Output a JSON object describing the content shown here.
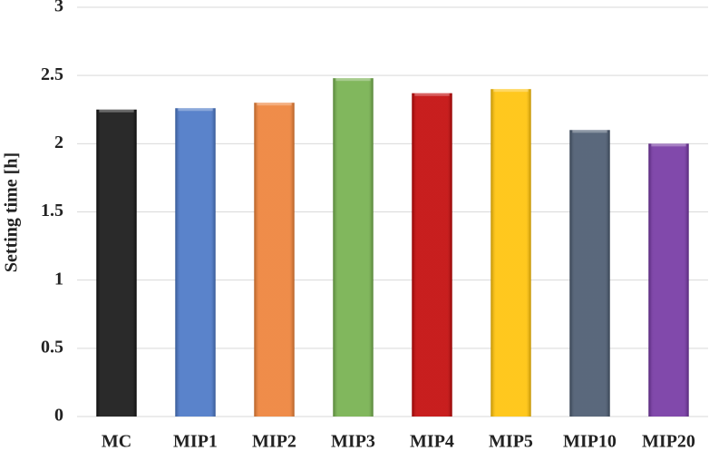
{
  "chart_data": {
    "type": "bar",
    "y_label": "Setting time [h]",
    "categories": [
      "MC",
      "MIP1",
      "MIP2",
      "MIP3",
      "MIP4",
      "MIP5",
      "MIP10",
      "MIP20"
    ],
    "values": [
      2.25,
      2.26,
      2.3,
      2.48,
      2.37,
      2.4,
      2.1,
      2.0
    ],
    "colors": [
      "#0d0d0d",
      "#4472c4",
      "#ed7d31",
      "#70ad47",
      "#c00000",
      "#ffc000",
      "#44546a",
      "#7030a0"
    ],
    "ylim": [
      0,
      3
    ],
    "yticks": [
      0,
      0.5,
      1,
      1.5,
      2,
      2.5,
      3
    ],
    "grid": true
  }
}
